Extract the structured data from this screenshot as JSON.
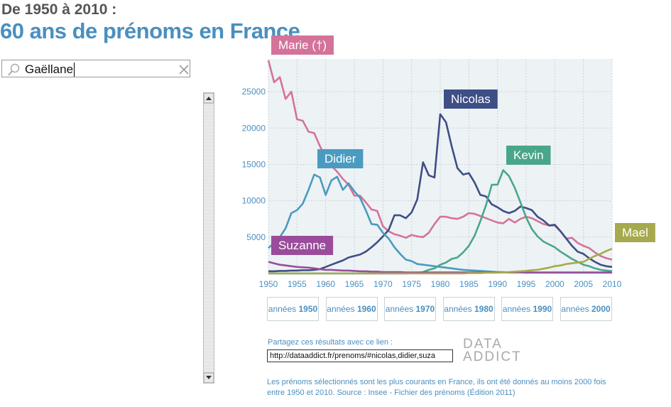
{
  "header": {
    "subtitle": "De 1950 à 2010 :",
    "title": "60 ans de prénoms en France"
  },
  "search": {
    "value": "Gaëllane"
  },
  "chart_data": {
    "type": "line",
    "x": [
      1950,
      1951,
      1952,
      1953,
      1954,
      1955,
      1956,
      1957,
      1958,
      1959,
      1960,
      1961,
      1962,
      1963,
      1964,
      1965,
      1966,
      1967,
      1968,
      1969,
      1970,
      1971,
      1972,
      1973,
      1974,
      1975,
      1976,
      1977,
      1978,
      1979,
      1980,
      1981,
      1982,
      1983,
      1984,
      1985,
      1986,
      1987,
      1988,
      1989,
      1990,
      1991,
      1992,
      1993,
      1994,
      1995,
      1996,
      1997,
      1998,
      1999,
      2000,
      2001,
      2002,
      2003,
      2004,
      2005,
      2006,
      2007,
      2008,
      2009,
      2010
    ],
    "xlim": [
      1950,
      2010
    ],
    "xticks": [
      1950,
      1955,
      1960,
      1965,
      1970,
      1975,
      1980,
      1985,
      1990,
      1995,
      2000,
      2005,
      2010
    ],
    "ylim": [
      0,
      29500
    ],
    "yticks": [
      5000,
      10000,
      15000,
      20000,
      25000
    ],
    "grid": true,
    "series": [
      {
        "name": "Marie (†)",
        "color": "#d4739a",
        "values": [
          29300,
          26300,
          27000,
          24000,
          25000,
          21200,
          21000,
          19500,
          19300,
          17500,
          16000,
          14800,
          14000,
          13000,
          12200,
          10700,
          10700,
          9800,
          8800,
          8600,
          6500,
          5800,
          5400,
          5200,
          4900,
          5300,
          5100,
          5000,
          5600,
          6800,
          7800,
          7800,
          7600,
          7500,
          7800,
          8300,
          8200,
          7900,
          7600,
          7300,
          7000,
          6900,
          7500,
          7000,
          7500,
          7800,
          7600,
          7200,
          6800,
          6600,
          6600,
          5800,
          4800,
          4900,
          4200,
          3800,
          3500,
          2900,
          2400,
          2100,
          1900
        ]
      },
      {
        "name": "Nicolas",
        "color": "#3e4e86",
        "values": [
          300,
          300,
          350,
          350,
          400,
          400,
          450,
          450,
          500,
          600,
          900,
          1200,
          1500,
          1800,
          2200,
          2400,
          2600,
          3000,
          3600,
          4300,
          5100,
          6000,
          8000,
          8000,
          7600,
          8400,
          10200,
          15300,
          13500,
          13200,
          21900,
          20800,
          17500,
          14500,
          13600,
          13800,
          12500,
          10800,
          10600,
          9500,
          9100,
          8600,
          8300,
          8600,
          9200,
          9000,
          8700,
          7800,
          7300,
          6600,
          6700,
          5800,
          4800,
          3800,
          3000,
          2700,
          2100,
          1600,
          1200,
          1000,
          900
        ]
      },
      {
        "name": "Didier",
        "color": "#4b9ac0",
        "values": [
          3500,
          4200,
          5000,
          6200,
          8300,
          8700,
          9600,
          11500,
          13600,
          13200,
          10800,
          12800,
          13300,
          11500,
          12400,
          11300,
          10400,
          8700,
          6800,
          6700,
          5600,
          4800,
          3600,
          2700,
          1900,
          1700,
          1300,
          1200,
          1100,
          1000,
          900,
          800,
          700,
          600,
          500,
          450,
          400,
          350,
          300,
          250,
          200,
          200,
          150,
          150,
          150,
          100,
          100,
          100,
          100,
          100,
          100,
          100,
          100,
          100,
          100,
          100,
          100,
          100,
          100,
          100,
          100
        ]
      },
      {
        "name": "Kevin",
        "color": "#4aa68a",
        "values": [
          0,
          0,
          0,
          0,
          0,
          0,
          0,
          0,
          0,
          0,
          0,
          0,
          0,
          0,
          0,
          0,
          0,
          0,
          0,
          0,
          0,
          0,
          0,
          0,
          0,
          50,
          100,
          200,
          500,
          700,
          1200,
          1500,
          2000,
          2200,
          2900,
          3800,
          5200,
          7200,
          9400,
          12200,
          12200,
          14200,
          13400,
          11800,
          9800,
          7700,
          6100,
          5100,
          4400,
          4000,
          3600,
          3000,
          2500,
          2000,
          1600,
          1200,
          1000,
          700,
          500,
          400,
          300
        ]
      },
      {
        "name": "Suzanne",
        "color": "#9a4c9a",
        "values": [
          1600,
          1400,
          1200,
          1100,
          1000,
          900,
          850,
          800,
          700,
          600,
          500,
          500,
          450,
          400,
          400,
          350,
          300,
          300,
          250,
          250,
          200,
          200,
          200,
          200,
          150,
          150,
          150,
          150,
          150,
          150,
          150,
          150,
          150,
          150,
          150,
          150,
          150,
          150,
          150,
          150,
          150,
          150,
          150,
          150,
          150,
          150,
          150,
          150,
          150,
          150,
          150,
          150,
          150,
          150,
          150,
          150,
          150,
          150,
          150,
          150,
          150
        ]
      },
      {
        "name": "Mael",
        "color": "#a6a94c",
        "values": [
          0,
          0,
          0,
          0,
          0,
          0,
          0,
          0,
          0,
          0,
          0,
          0,
          0,
          0,
          0,
          0,
          0,
          0,
          0,
          0,
          0,
          0,
          0,
          0,
          0,
          0,
          0,
          0,
          0,
          0,
          0,
          0,
          0,
          0,
          0,
          50,
          50,
          50,
          100,
          100,
          100,
          150,
          200,
          250,
          300,
          350,
          450,
          500,
          650,
          800,
          1000,
          1100,
          1300,
          1400,
          1500,
          1600,
          2000,
          2400,
          2700,
          3100,
          3400
        ]
      }
    ]
  },
  "decade_buttons": [
    {
      "label": "années",
      "decade": "1950"
    },
    {
      "label": "années",
      "decade": "1960"
    },
    {
      "label": "années",
      "decade": "1970"
    },
    {
      "label": "années",
      "decade": "1980"
    },
    {
      "label": "années",
      "decade": "1990"
    },
    {
      "label": "années",
      "decade": "2000"
    }
  ],
  "share": {
    "label": "Partagez ces résultats avec ce lien :",
    "url": "http://dataaddict.fr/prenoms/#nicolas,didier,suza"
  },
  "logo": {
    "line1": "DATA",
    "line2": "ADDICT"
  },
  "footer": {
    "text": "Les prénoms sélectionnés sont les plus courants en France, ils ont été donnés au moins 2000 fois entre 1950 et 2010. Source : Insee - Fichier des prénoms (Édition 2011)"
  }
}
